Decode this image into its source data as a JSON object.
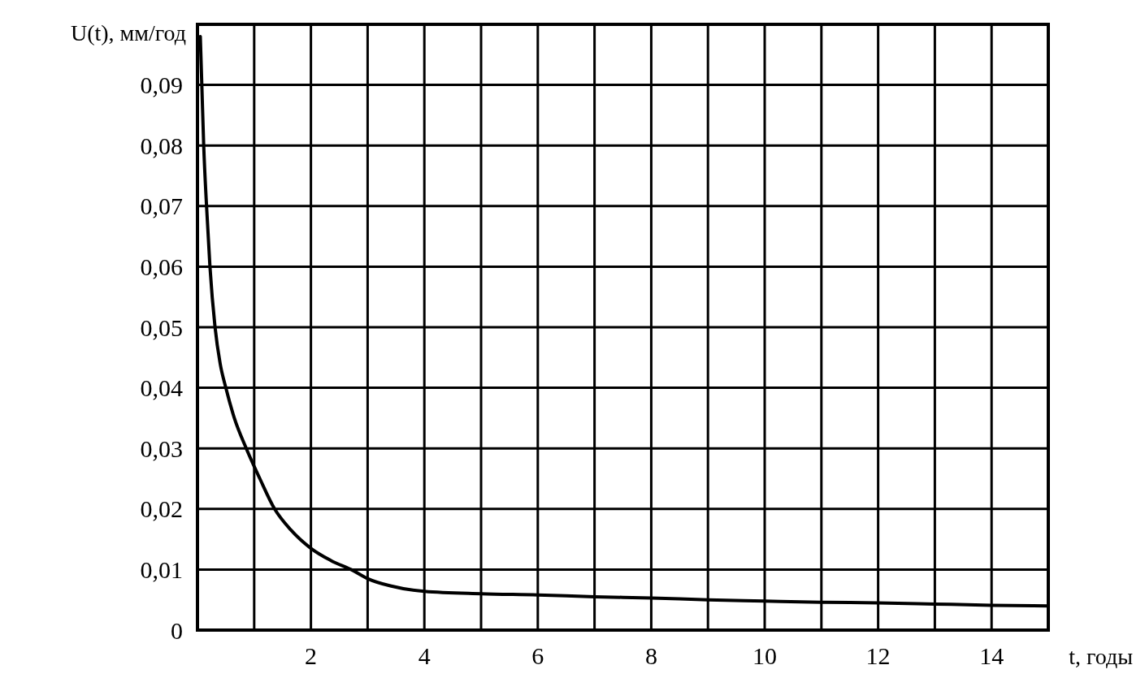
{
  "chart_data": {
    "type": "line",
    "xlabel": "t, годы",
    "ylabel": "U(t), мм/год",
    "x": [
      0.05,
      0.08,
      0.11,
      0.16,
      0.22,
      0.31,
      0.4,
      0.5,
      0.65,
      0.86,
      1.1,
      1.36,
      1.65,
      2,
      2.35,
      2.75,
      3,
      3.4,
      4,
      5,
      6,
      7,
      8,
      9,
      10,
      11,
      12,
      13,
      14,
      15
    ],
    "series": [
      {
        "color": "#000000",
        "values": [
          0.098,
          0.089,
          0.08,
          0.07,
          0.06,
          0.05,
          0.044,
          0.04,
          0.035,
          0.03,
          0.025,
          0.02,
          0.0165,
          0.0135,
          0.0115,
          0.0098,
          0.0085,
          0.0073,
          0.0064,
          0.006,
          0.0058,
          0.0055,
          0.0053,
          0.005,
          0.0048,
          0.0046,
          0.0045,
          0.0043,
          0.0041,
          0.004
        ]
      }
    ],
    "xlim": [
      0,
      15
    ],
    "xticks": [
      {
        "value": 0,
        "label": null
      },
      {
        "value": 1,
        "label": null
      },
      2,
      {
        "value": 3,
        "label": null
      },
      4,
      {
        "value": 5,
        "label": null
      },
      6,
      {
        "value": 7,
        "label": null
      },
      8,
      {
        "value": 9,
        "label": null
      },
      10,
      {
        "value": 11,
        "label": null
      },
      12,
      {
        "value": 13,
        "label": null
      },
      14,
      {
        "value": 15,
        "label": null
      }
    ],
    "ylim": [
      0,
      0.1
    ],
    "yticks": [
      {
        "value": 0,
        "label": "0"
      },
      {
        "value": 0.01,
        "label": "0,01"
      },
      {
        "value": 0.02,
        "label": "0,02"
      },
      {
        "value": 0.03,
        "label": "0,03"
      },
      {
        "value": 0.04,
        "label": "0,04"
      },
      {
        "value": 0.05,
        "label": "0,05"
      },
      {
        "value": 0.06,
        "label": "0,06"
      },
      {
        "value": 0.07,
        "label": "0,07"
      },
      {
        "value": 0.08,
        "label": "0,08"
      },
      {
        "value": 0.09,
        "label": "0,09"
      },
      {
        "value": 0.1,
        "label": null
      }
    ],
    "grid": true,
    "marker": "none",
    "line_style": "solid"
  }
}
